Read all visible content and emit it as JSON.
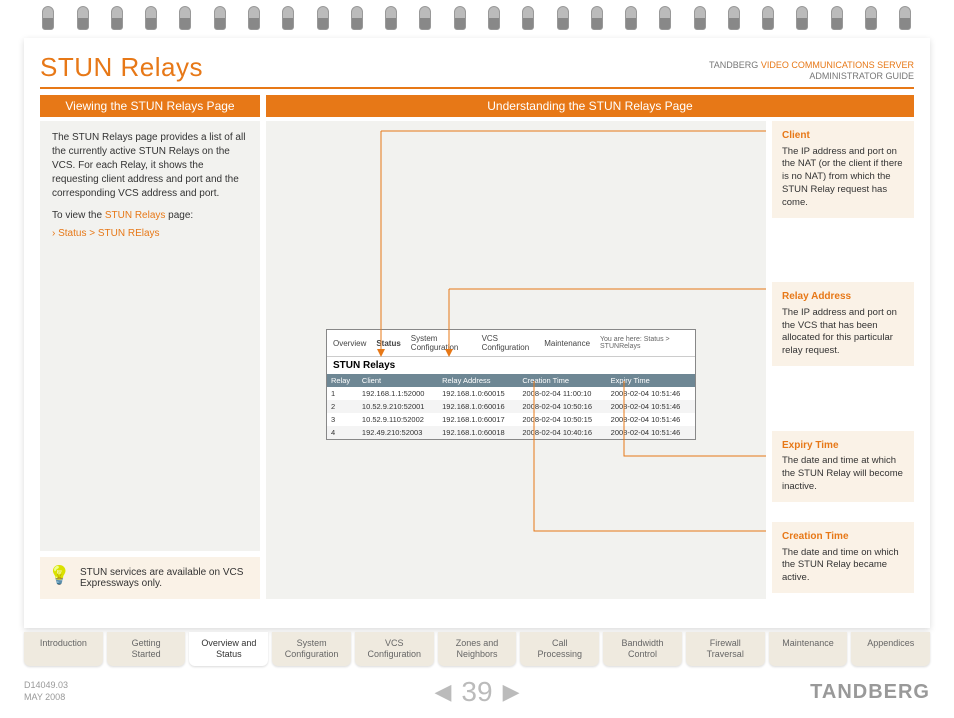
{
  "header": {
    "title": "STUN Relays",
    "brand": "TANDBERG",
    "doc_product": "VIDEO COMMUNICATIONS SERVER",
    "doc_type": "ADMINISTRATOR GUIDE"
  },
  "bars": {
    "left": "Viewing the STUN Relays Page",
    "right": "Understanding the STUN Relays Page"
  },
  "left_panel": {
    "intro": "The STUN Relays page provides a list of all the currently active STUN Relays on the VCS. For each Relay, it shows the requesting client address and port and the corresponding VCS address and port.",
    "to_view_prefix": "To view the ",
    "to_view_link": "STUN Relays",
    "to_view_suffix": " page:",
    "path": "Status > STUN RElays"
  },
  "tip": {
    "text": "STUN services are available on VCS Expressways only."
  },
  "notes": {
    "client": {
      "title": "Client",
      "body": "The IP address and port on the NAT (or the client if there is no NAT) from which the STUN Relay request has come."
    },
    "relay_address": {
      "title": "Relay Address",
      "body": "The IP address and port on the VCS that has been allocated for this particular relay request."
    },
    "expiry_time": {
      "title": "Expiry Time",
      "body": "The date and time at which the STUN Relay will become inactive."
    },
    "creation_time": {
      "title": "Creation Time",
      "body": "The date and time on which the STUN Relay became active."
    }
  },
  "screenshot": {
    "nav": {
      "overview": "Overview",
      "status": "Status",
      "sys": "System Configuration",
      "vcs": "VCS Configuration",
      "maint": "Maintenance"
    },
    "breadcrumb": "You are here: Status > STUNRelays",
    "caption": "STUN Relays",
    "columns": {
      "relay": "Relay",
      "client": "Client",
      "relay_addr": "Relay Address",
      "creation": "Creation Time",
      "expiry": "Expiry Time"
    },
    "rows": [
      {
        "relay": "1",
        "client": "192.168.1.1:52000",
        "relay_addr": "192.168.1.0:60015",
        "creation": "2008-02-04 11:00:10",
        "expiry": "2008-02-04 10:51:46"
      },
      {
        "relay": "2",
        "client": "10.52.9.210:52001",
        "relay_addr": "192.168.1.0:60016",
        "creation": "2008-02-04 10:50:16",
        "expiry": "2008-02-04 10:51:46"
      },
      {
        "relay": "3",
        "client": "10.52.9.110:52002",
        "relay_addr": "192.168.1.0:60017",
        "creation": "2008-02-04 10:50:15",
        "expiry": "2008-02-04 10:51:46"
      },
      {
        "relay": "4",
        "client": "192.49.210:52003",
        "relay_addr": "192.168.1.0:60018",
        "creation": "2008-02-04 10:40:16",
        "expiry": "2008-02-04 10:51:46"
      }
    ]
  },
  "tabs": [
    "Introduction",
    "Getting Started",
    "Overview and Status",
    "System Configuration",
    "VCS Configuration",
    "Zones and Neighbors",
    "Call Processing",
    "Bandwidth Control",
    "Firewall Traversal",
    "Maintenance",
    "Appendices"
  ],
  "active_tab_index": 2,
  "footer": {
    "docnum": "D14049.03",
    "date": "MAY 2008",
    "page": "39",
    "brand": "TANDBERG"
  },
  "colors": {
    "accent": "#e77817",
    "panel_bg": "#f2f2ef",
    "note_bg": "#faf2e7",
    "table_header": "#6e8794"
  }
}
